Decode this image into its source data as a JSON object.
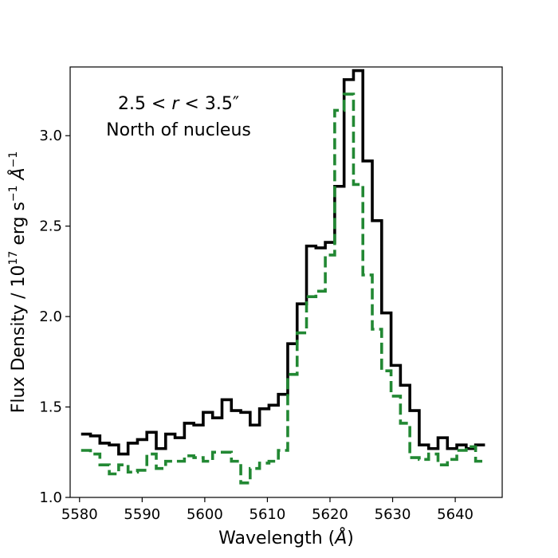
{
  "chart_data": {
    "type": "line",
    "step": true,
    "xlabel": "Wavelength ($\\AA$)",
    "xlabel_prefix": "Wavelength (",
    "xlabel_unit": "Å",
    "xlabel_suffix": ")",
    "ylabel": "Flux Density / 10^17 erg s^-1 Å^-1",
    "ylabel_parts": {
      "prefix": "Flux Density / 10",
      "exp1": "17",
      "mid": " erg s",
      "exp2": "−1",
      "unit": " Å",
      "exp3": "−1"
    },
    "xlim": [
      5578.5,
      5647.5
    ],
    "ylim": [
      1.0,
      3.38
    ],
    "xticks": [
      5580,
      5590,
      5600,
      5610,
      5620,
      5630,
      5640
    ],
    "yticks": [
      "1.0",
      "1.5",
      "2.0",
      "2.5",
      "3.0"
    ],
    "annotations": [
      "2.5 < r < 3.5″",
      "North of nucleus"
    ],
    "annotation_line1": {
      "prefix": "2.5 < ",
      "italic": "r",
      "suffix": " < 3.5″"
    },
    "annotation_line2": "North of nucleus",
    "grid": false,
    "x": [
      5581,
      5582.5,
      5584,
      5585.5,
      5587,
      5588.5,
      5590,
      5591.5,
      5593,
      5594.5,
      5596,
      5597.5,
      5599,
      5600.5,
      5602,
      5603.5,
      5605,
      5606.5,
      5608,
      5609.5,
      5611,
      5612.5,
      5614,
      5615.5,
      5617,
      5618.5,
      5620,
      5621.5,
      5623,
      5624.5,
      5626,
      5627.5,
      5629,
      5630.5,
      5632,
      5633.5,
      5635,
      5636.5,
      5638,
      5639.5,
      5641,
      5642.5,
      5644
    ],
    "series": [
      {
        "color": "#000000",
        "dash": "solid",
        "values": [
          1.35,
          1.34,
          1.3,
          1.29,
          1.24,
          1.3,
          1.32,
          1.36,
          1.27,
          1.35,
          1.33,
          1.41,
          1.4,
          1.47,
          1.44,
          1.54,
          1.48,
          1.47,
          1.4,
          1.49,
          1.51,
          1.57,
          1.85,
          2.07,
          2.39,
          2.38,
          2.41,
          2.72,
          3.31,
          3.36,
          2.86,
          2.53,
          2.02,
          1.73,
          1.62,
          1.48,
          1.29,
          1.27,
          1.33,
          1.27,
          1.29,
          1.27,
          1.29
        ]
      },
      {
        "color": "#228833",
        "dash": "dashed",
        "values": [
          1.26,
          1.24,
          1.18,
          1.13,
          1.18,
          1.14,
          1.15,
          1.24,
          1.16,
          1.2,
          1.2,
          1.23,
          1.22,
          1.2,
          1.25,
          1.25,
          1.2,
          1.08,
          1.16,
          1.19,
          1.2,
          1.26,
          1.68,
          1.91,
          2.11,
          2.14,
          2.34,
          3.14,
          3.23,
          2.73,
          2.23,
          1.93,
          1.7,
          1.56,
          1.41,
          1.22,
          1.21,
          1.24,
          1.18,
          1.21,
          1.26,
          1.28,
          1.2
        ]
      }
    ]
  }
}
